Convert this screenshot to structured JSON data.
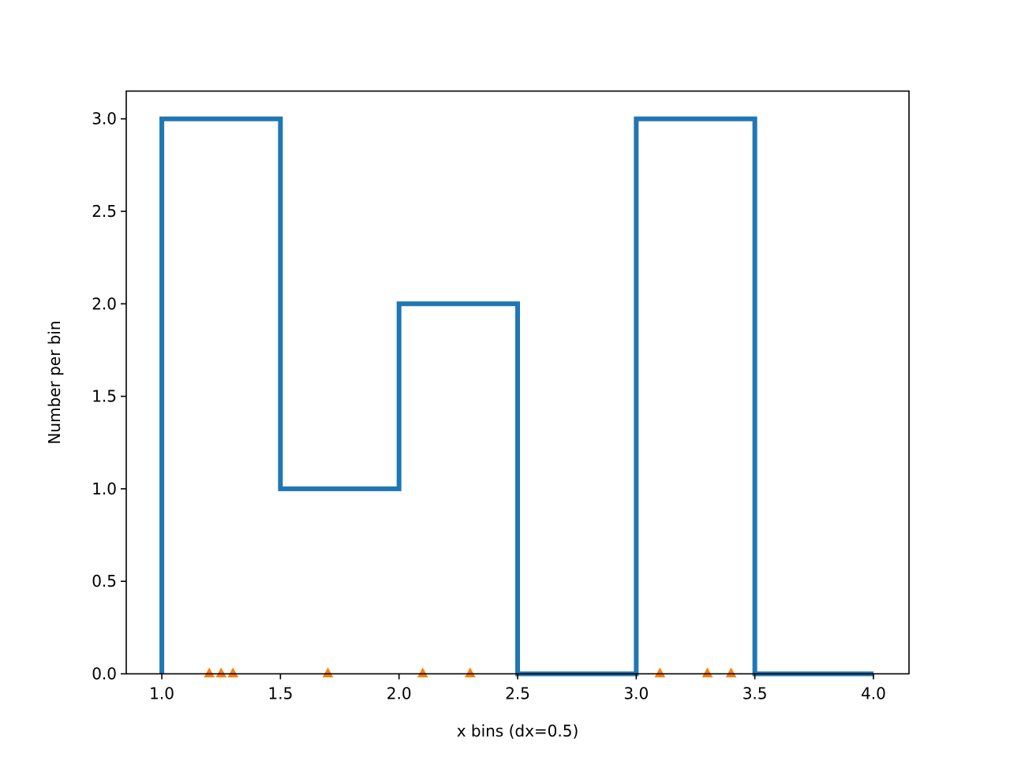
{
  "chart_data": {
    "type": "histogram",
    "title": "",
    "xlabel": "x bins (dx=0.5)",
    "ylabel": "Number per bin",
    "xlim": [
      0.85,
      4.15
    ],
    "ylim": [
      0,
      3.15
    ],
    "xticks": [
      1.0,
      1.5,
      2.0,
      2.5,
      3.0,
      3.5,
      4.0
    ],
    "xtick_labels": [
      "1.0",
      "1.5",
      "2.0",
      "2.5",
      "3.0",
      "3.5",
      "4.0"
    ],
    "yticks": [
      0.0,
      0.5,
      1.0,
      1.5,
      2.0,
      2.5,
      3.0
    ],
    "ytick_labels": [
      "0.0",
      "0.5",
      "1.0",
      "1.5",
      "2.0",
      "2.5",
      "3.0"
    ],
    "grid": false,
    "histogram": {
      "bin_edges": [
        1.0,
        1.5,
        2.0,
        2.5,
        3.0,
        3.5,
        4.0
      ],
      "counts": [
        3,
        1,
        2,
        0,
        3,
        0
      ],
      "histtype": "step",
      "color": "#1f77b4"
    },
    "data_points": {
      "x": [
        1.2,
        1.25,
        1.3,
        1.7,
        2.1,
        2.3,
        3.1,
        3.3,
        3.4
      ],
      "y": [
        0,
        0,
        0,
        0,
        0,
        0,
        0,
        0,
        0
      ],
      "marker": "triangle-up",
      "color": "#ff7f0e"
    }
  }
}
